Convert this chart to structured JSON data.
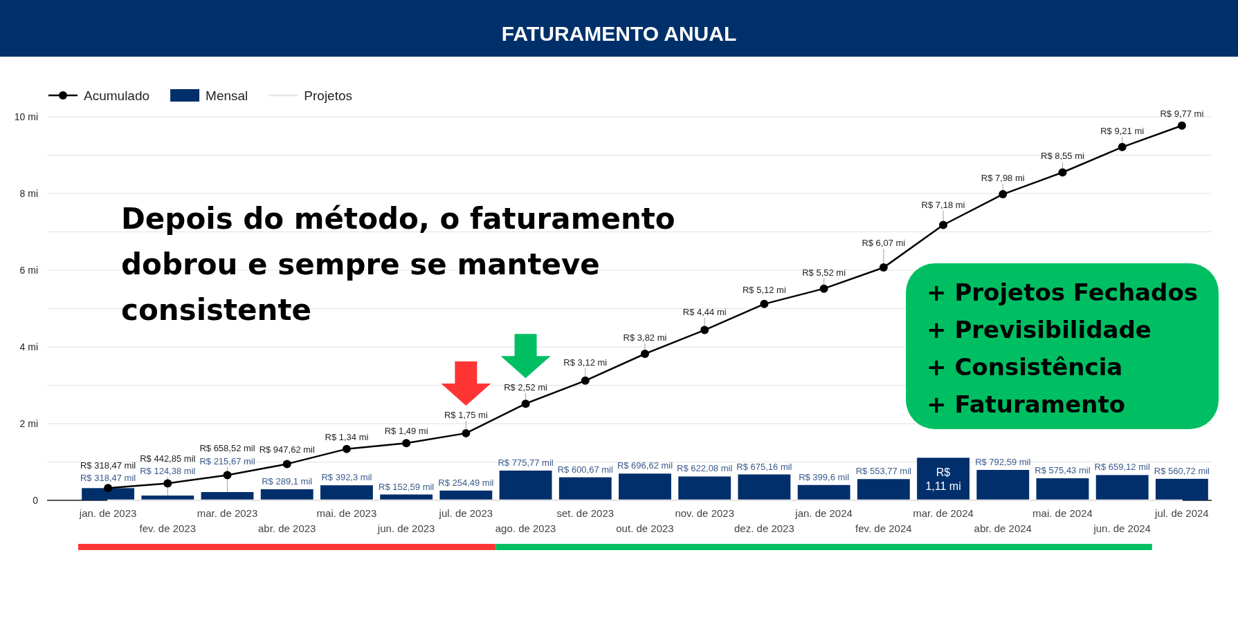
{
  "chart_data": {
    "type": "bar",
    "title": "FATURAMENTO ANUAL",
    "categories": [
      "jan. de 2023",
      "fev. de 2023",
      "mar. de 2023",
      "abr. de 2023",
      "mai. de 2023",
      "jun. de 2023",
      "jul. de 2023",
      "ago. de 2023",
      "set. de 2023",
      "out. de 2023",
      "nov. de 2023",
      "dez. de 2023",
      "jan. de 2024",
      "fev. de 2024",
      "mar. de 2024",
      "abr. de 2024",
      "mai. de 2024",
      "jun. de 2024",
      "jul. de 2024"
    ],
    "series": [
      {
        "name": "Acumulado",
        "type": "line",
        "color": "#000000",
        "marker": "circle",
        "values": [
          0.31847,
          0.44285,
          0.65852,
          0.94762,
          1.34,
          1.49,
          1.75,
          2.52,
          3.12,
          3.82,
          4.44,
          5.12,
          5.52,
          6.07,
          7.18,
          7.98,
          8.55,
          9.21,
          9.77
        ],
        "value_labels": [
          "R$ 318,47 mil",
          "R$ 442,85 mil",
          "R$ 658,52 mil",
          "R$ 947,62 mil",
          "R$ 1,34 mi",
          "R$ 1,49 mi",
          "R$ 1,75 mi",
          "R$ 2,52 mi",
          "R$ 3,12 mi",
          "R$ 3,82 mi",
          "R$ 4,44 mi",
          "R$ 5,12 mi",
          "R$ 5,52 mi",
          "R$ 6,07 mi",
          "R$ 7,18 mi",
          "R$ 7,98 mi",
          "R$ 8,55 mi",
          "R$ 9,21 mi",
          "R$ 9,77 mi"
        ]
      },
      {
        "name": "Mensal",
        "color": "#002f6b",
        "values": [
          0.31847,
          0.12438,
          0.21567,
          0.2891,
          0.3923,
          0.15259,
          0.25449,
          0.77577,
          0.60067,
          0.69662,
          0.62208,
          0.67516,
          0.3996,
          0.55377,
          1.11,
          0.79259,
          0.57543,
          0.65912,
          0.56072
        ],
        "value_labels": [
          "R$ 318,47 mil",
          "R$ 124,38 mil",
          "R$ 215,67 mil",
          "R$ 289,1 mil",
          "R$ 392,3 mil",
          "R$ 152,59 mil",
          "R$ 254,49 mil",
          "R$ 775,77 mil",
          "R$ 600,67 mil",
          "R$ 696,62 mil",
          "R$ 622,08 mil",
          "R$ 675,16 mil",
          "R$ 399,6 mil",
          "R$ 553,77 mil",
          "R$ 1,11 mi",
          "R$ 792,59 mil",
          "R$ 575,43 mil",
          "R$ 659,12 mil",
          "R$ 560,72 mil"
        ]
      },
      {
        "name": "Projetos",
        "type": "line",
        "color": "#e6e6e6",
        "values": [
          0,
          0,
          0,
          0,
          0,
          0,
          0,
          0,
          0,
          0,
          0,
          0,
          0,
          0,
          0,
          0,
          0,
          0,
          0
        ]
      }
    ],
    "ylim": [
      0,
      10
    ],
    "yticks": [
      0,
      {
        "value": 1,
        "label": null
      },
      {
        "value": 2,
        "label": "2 mi"
      },
      {
        "value": 3,
        "label": null
      },
      {
        "value": 4,
        "label": "4 mi"
      },
      {
        "value": 5,
        "label": null
      },
      {
        "value": 6,
        "label": "6 mi"
      },
      {
        "value": 7,
        "label": null
      },
      {
        "value": 8,
        "label": "8 mi"
      },
      {
        "value": 9,
        "label": null
      },
      {
        "value": 10,
        "label": "10 mi"
      }
    ],
    "grid": "y",
    "legend": "top left",
    "annotations": [
      "Depois do método, o faturamento dobrou e sempre se manteve consistente",
      "+ Projetos Fechados",
      "+ Previsibilidade",
      "+ Consistência",
      "+ Faturamento"
    ]
  }
}
